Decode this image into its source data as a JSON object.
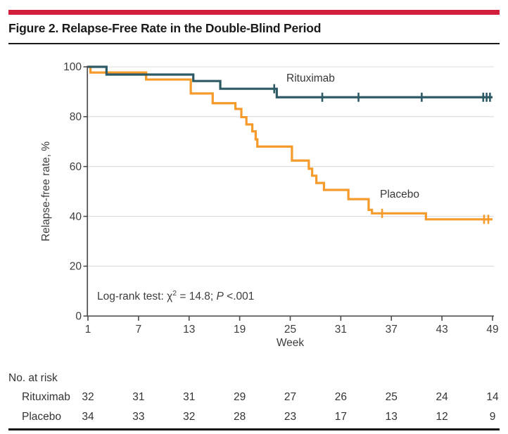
{
  "header": {
    "title": "Figure 2. Relapse-Free Rate in the Double-Blind Period"
  },
  "chart_data": {
    "type": "line",
    "subtype": "kaplan-meier-step",
    "xlabel": "Week",
    "ylabel": "Relapse-free rate, %",
    "xticks": [
      1,
      7,
      13,
      19,
      25,
      31,
      37,
      43,
      49
    ],
    "yticks": [
      0,
      20,
      40,
      60,
      80,
      100
    ],
    "xlim": [
      1,
      49
    ],
    "ylim": [
      0,
      100
    ],
    "grid": "horizontal",
    "legend_position": "inline-labels",
    "annotation": {
      "prefix": "Log-rank test: χ",
      "sup": "2",
      "mid": " = 14.8; ",
      "italic": "P",
      "suffix": " <.001"
    },
    "series": [
      {
        "name": "Rituximab",
        "color": "#2E5A66",
        "steps": [
          [
            1,
            100
          ],
          [
            3.2,
            96.9
          ],
          [
            13.5,
            94.3
          ],
          [
            16.7,
            91.2
          ],
          [
            23.4,
            87.8
          ]
        ],
        "end_week": 49,
        "final_value": 87.8,
        "censor_marks": [
          [
            23.1,
            91.2
          ],
          [
            28.8,
            87.8
          ],
          [
            33.1,
            87.8
          ],
          [
            40.6,
            87.8
          ],
          [
            47.9,
            87.8
          ],
          [
            48.3,
            87.8
          ],
          [
            48.7,
            87.8
          ]
        ]
      },
      {
        "name": "Placebo",
        "color": "#F59B2B",
        "steps": [
          [
            1,
            100
          ],
          [
            1.3,
            97.7
          ],
          [
            7.9,
            94.9
          ],
          [
            13.2,
            89.3
          ],
          [
            15.8,
            85.4
          ],
          [
            18.5,
            83.1
          ],
          [
            19.2,
            79.8
          ],
          [
            19.8,
            76.9
          ],
          [
            20.5,
            74.1
          ],
          [
            20.9,
            70.9
          ],
          [
            21.1,
            68.0
          ],
          [
            25.2,
            62.4
          ],
          [
            27.2,
            59.1
          ],
          [
            27.6,
            56.3
          ],
          [
            28.1,
            53.4
          ],
          [
            29.0,
            50.6
          ],
          [
            31.9,
            46.9
          ],
          [
            34.3,
            42.6
          ],
          [
            34.7,
            41.2
          ],
          [
            41.1,
            38.8
          ]
        ],
        "end_week": 49,
        "final_value": 38.8,
        "censor_marks": [
          [
            35.9,
            41.2
          ],
          [
            48.0,
            38.8
          ],
          [
            48.5,
            38.8
          ]
        ]
      }
    ]
  },
  "risk_table": {
    "title": "No. at risk",
    "weeks": [
      1,
      7,
      13,
      19,
      25,
      31,
      37,
      43,
      49
    ],
    "rows": [
      {
        "label": "Rituximab",
        "values": [
          32,
          31,
          31,
          29,
          27,
          26,
          25,
          24,
          14
        ]
      },
      {
        "label": "Placebo",
        "values": [
          34,
          33,
          32,
          28,
          23,
          17,
          13,
          12,
          9
        ]
      }
    ]
  },
  "colors": {
    "accent_red": "#D21F3B",
    "rituximab": "#2E5A66",
    "placebo": "#F59B2B",
    "grid": "#DCDCDC",
    "axis": "#4D4D4D",
    "text": "#3D3D3D"
  }
}
